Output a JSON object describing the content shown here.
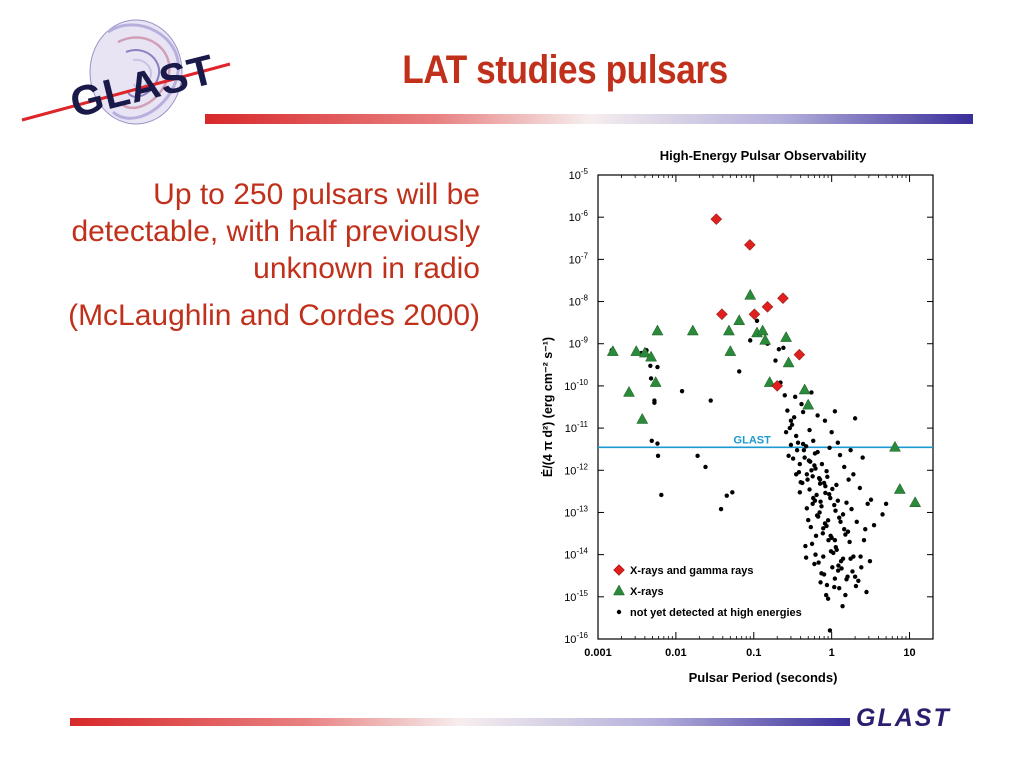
{
  "slide": {
    "title": "LAT studies pulsars",
    "logo_text": "GLAST",
    "bullets": [
      "Up to 250 pulsars will be detectable, with half previously unknown in radio",
      "(McLaughlin and Cordes 2000)"
    ],
    "footer_logo": "GLAST"
  },
  "colors": {
    "title_red": "#c0301a",
    "diamond_red": "#e0201c",
    "triangle_green": "#2a8a3a",
    "glast_line": "#1a9ad0",
    "footer_navy": "#2a1f6e"
  },
  "chart_data": {
    "type": "scatter",
    "title": "High-Energy Pulsar Observability",
    "xlabel": "Pulsar Period  (seconds)",
    "ylabel": "Ė/(4 π d²)  (erg cm⁻² s⁻¹)",
    "x_scale": "log",
    "y_scale": "log",
    "xlim": [
      0.001,
      20
    ],
    "ylim": [
      1e-16,
      1e-05
    ],
    "x_ticks": [
      {
        "value": 0.001,
        "label": "0.001"
      },
      {
        "value": 0.01,
        "label": "0.01"
      },
      {
        "value": 0.1,
        "label": "0.1"
      },
      {
        "value": 1,
        "label": "1"
      },
      {
        "value": 10,
        "label": "10"
      }
    ],
    "y_ticks": [
      {
        "value": 1e-05,
        "base": "10",
        "exp": "-5"
      },
      {
        "value": 1e-06,
        "base": "10",
        "exp": "-6"
      },
      {
        "value": 1e-07,
        "base": "10",
        "exp": "-7"
      },
      {
        "value": 1e-08,
        "base": "10",
        "exp": "-8"
      },
      {
        "value": 1e-09,
        "base": "10",
        "exp": "-9"
      },
      {
        "value": 1e-10,
        "base": "10",
        "exp": "-10"
      },
      {
        "value": 1e-11,
        "base": "10",
        "exp": "-11"
      },
      {
        "value": 1e-12,
        "base": "10",
        "exp": "-12"
      },
      {
        "value": 1e-13,
        "base": "10",
        "exp": "-13"
      },
      {
        "value": 1e-14,
        "base": "10",
        "exp": "-14"
      },
      {
        "value": 1e-15,
        "base": "10",
        "exp": "-15"
      },
      {
        "value": 1e-16,
        "base": "10",
        "exp": "-16"
      }
    ],
    "threshold": {
      "label": "GLAST",
      "y": 3.5e-12,
      "color": "#1a9ad0"
    },
    "grid": false,
    "legend_position": "bottom-left",
    "series": [
      {
        "name": "X-rays and gamma rays",
        "marker": "diamond",
        "color": "#e0201c",
        "points": [
          {
            "x": 0.033,
            "y": 9e-07
          },
          {
            "x": 0.089,
            "y": 2.2e-07
          },
          {
            "x": 0.039,
            "y": 5e-09
          },
          {
            "x": 0.102,
            "y": 5e-09
          },
          {
            "x": 0.15,
            "y": 7.5e-09
          },
          {
            "x": 0.237,
            "y": 1.2e-08
          },
          {
            "x": 0.385,
            "y": 5.5e-10
          },
          {
            "x": 0.2,
            "y": 1e-10
          }
        ]
      },
      {
        "name": "X-rays",
        "marker": "triangle",
        "color": "#2a8a3a",
        "points": [
          {
            "x": 0.00155,
            "y": 6.5e-10
          },
          {
            "x": 0.0031,
            "y": 6.5e-10
          },
          {
            "x": 0.004,
            "y": 6e-10
          },
          {
            "x": 0.0048,
            "y": 4.8e-10
          },
          {
            "x": 0.0058,
            "y": 2e-09
          },
          {
            "x": 0.0055,
            "y": 1.2e-10
          },
          {
            "x": 0.0025,
            "y": 7e-11
          },
          {
            "x": 0.0037,
            "y": 1.6e-11
          },
          {
            "x": 0.0165,
            "y": 2e-09
          },
          {
            "x": 0.048,
            "y": 2e-09
          },
          {
            "x": 0.05,
            "y": 6.5e-10
          },
          {
            "x": 0.065,
            "y": 3.5e-09
          },
          {
            "x": 0.09,
            "y": 1.4e-08
          },
          {
            "x": 0.11,
            "y": 1.8e-09
          },
          {
            "x": 0.13,
            "y": 2e-09
          },
          {
            "x": 0.14,
            "y": 1.2e-09
          },
          {
            "x": 0.16,
            "y": 1.2e-10
          },
          {
            "x": 0.26,
            "y": 1.4e-09
          },
          {
            "x": 0.28,
            "y": 3.5e-10
          },
          {
            "x": 0.45,
            "y": 8e-11
          },
          {
            "x": 0.5,
            "y": 3.5e-11
          },
          {
            "x": 6.5,
            "y": 3.5e-12
          },
          {
            "x": 7.5,
            "y": 3.5e-13
          },
          {
            "x": 11.8,
            "y": 1.7e-13
          }
        ]
      },
      {
        "name": "not yet detected at high energies",
        "marker": "dot",
        "color": "#000000",
        "points": [
          {
            "x": 0.0015,
            "y": 7e-10
          },
          {
            "x": 0.0048,
            "y": 1.5e-10
          },
          {
            "x": 0.0053,
            "y": 4.5e-11
          },
          {
            "x": 0.0049,
            "y": 5e-12
          },
          {
            "x": 0.0053,
            "y": 4e-11
          },
          {
            "x": 0.0058,
            "y": 2.8e-10
          },
          {
            "x": 0.0058,
            "y": 4.3e-12
          },
          {
            "x": 0.0059,
            "y": 2.2e-12
          },
          {
            "x": 0.0065,
            "y": 2.6e-13
          },
          {
            "x": 0.0042,
            "y": 7e-10
          },
          {
            "x": 0.0036,
            "y": 6e-10
          },
          {
            "x": 0.0047,
            "y": 3e-10
          },
          {
            "x": 0.012,
            "y": 7.5e-11
          },
          {
            "x": 0.019,
            "y": 2.2e-12
          },
          {
            "x": 0.024,
            "y": 1.2e-12
          },
          {
            "x": 0.028,
            "y": 4.5e-11
          },
          {
            "x": 0.038,
            "y": 1.2e-13
          },
          {
            "x": 0.045,
            "y": 2.5e-13
          },
          {
            "x": 0.053,
            "y": 3e-13
          },
          {
            "x": 0.065,
            "y": 2.2e-10
          },
          {
            "x": 0.09,
            "y": 1.2e-09
          },
          {
            "x": 0.11,
            "y": 3.5e-09
          },
          {
            "x": 0.15,
            "y": 1e-09
          },
          {
            "x": 0.19,
            "y": 4e-10
          },
          {
            "x": 0.21,
            "y": 7.4e-10
          },
          {
            "x": 0.24,
            "y": 8e-10
          },
          {
            "x": 0.22,
            "y": 1.2e-10
          },
          {
            "x": 0.25,
            "y": 6e-11
          },
          {
            "x": 0.29,
            "y": 1e-11
          },
          {
            "x": 0.34,
            "y": 5.5e-11
          },
          {
            "x": 0.41,
            "y": 3.7e-11
          },
          {
            "x": 0.31,
            "y": 1.2e-11
          },
          {
            "x": 0.26,
            "y": 8e-12
          },
          {
            "x": 0.37,
            "y": 4.5e-12
          },
          {
            "x": 0.44,
            "y": 3e-12
          },
          {
            "x": 0.28,
            "y": 2.2e-12
          },
          {
            "x": 0.53,
            "y": 1.6e-12
          },
          {
            "x": 0.62,
            "y": 1.1e-12
          },
          {
            "x": 0.48,
            "y": 8e-13
          },
          {
            "x": 0.71,
            "y": 6e-13
          },
          {
            "x": 0.83,
            "y": 4.2e-13
          },
          {
            "x": 0.39,
            "y": 3e-13
          },
          {
            "x": 0.96,
            "y": 2.2e-13
          },
          {
            "x": 0.57,
            "y": 1.6e-13
          },
          {
            "x": 1.12,
            "y": 1.1e-13
          },
          {
            "x": 0.67,
            "y": 8e-14
          },
          {
            "x": 1.3,
            "y": 6e-14
          },
          {
            "x": 0.78,
            "y": 4.2e-14
          },
          {
            "x": 1.5,
            "y": 3e-14
          },
          {
            "x": 0.91,
            "y": 2.2e-14
          },
          {
            "x": 0.46,
            "y": 1.6e-14
          },
          {
            "x": 1.05,
            "y": 1.1e-14
          },
          {
            "x": 1.75,
            "y": 8e-15
          },
          {
            "x": 0.6,
            "y": 6e-15
          },
          {
            "x": 1.21,
            "y": 4.2e-15
          },
          {
            "x": 2.0,
            "y": 3e-15
          },
          {
            "x": 0.72,
            "y": 2.2e-15
          },
          {
            "x": 0.85,
            "y": 1.1e-15
          },
          {
            "x": 1.38,
            "y": 6e-16
          },
          {
            "x": 0.95,
            "y": 1.6e-16
          },
          {
            "x": 0.33,
            "y": 1.8e-11
          },
          {
            "x": 0.43,
            "y": 2.4e-11
          },
          {
            "x": 0.52,
            "y": 9e-12
          },
          {
            "x": 0.35,
            "y": 6.5e-12
          },
          {
            "x": 0.58,
            "y": 5e-12
          },
          {
            "x": 0.47,
            "y": 3.7e-12
          },
          {
            "x": 0.66,
            "y": 2.7e-12
          },
          {
            "x": 0.32,
            "y": 1.9e-12
          },
          {
            "x": 0.75,
            "y": 1.4e-12
          },
          {
            "x": 0.55,
            "y": 1e-12
          },
          {
            "x": 0.88,
            "y": 7e-13
          },
          {
            "x": 0.42,
            "y": 5e-13
          },
          {
            "x": 1.02,
            "y": 3.6e-13
          },
          {
            "x": 0.64,
            "y": 2.6e-13
          },
          {
            "x": 1.2,
            "y": 1.9e-13
          },
          {
            "x": 0.74,
            "y": 1.4e-13
          },
          {
            "x": 1.4,
            "y": 9e-14
          },
          {
            "x": 0.5,
            "y": 6.6e-14
          },
          {
            "x": 0.86,
            "y": 4.8e-14
          },
          {
            "x": 1.62,
            "y": 3.5e-14
          },
          {
            "x": 1.0,
            "y": 2.5e-14
          },
          {
            "x": 0.56,
            "y": 1.8e-14
          },
          {
            "x": 1.16,
            "y": 1.3e-14
          },
          {
            "x": 1.9,
            "y": 9e-15
          },
          {
            "x": 0.68,
            "y": 6.5e-15
          },
          {
            "x": 1.34,
            "y": 4.7e-15
          },
          {
            "x": 0.8,
            "y": 3.4e-15
          },
          {
            "x": 2.2,
            "y": 2.4e-15
          },
          {
            "x": 1.08,
            "y": 1.7e-15
          },
          {
            "x": 0.9,
            "y": 9e-16
          },
          {
            "x": 0.36,
            "y": 3e-12
          },
          {
            "x": 0.45,
            "y": 2e-12
          },
          {
            "x": 0.6,
            "y": 1.3e-12
          },
          {
            "x": 0.38,
            "y": 9e-13
          },
          {
            "x": 0.69,
            "y": 6.5e-13
          },
          {
            "x": 0.8,
            "y": 5e-13
          },
          {
            "x": 0.52,
            "y": 3.5e-13
          },
          {
            "x": 0.93,
            "y": 2.7e-13
          },
          {
            "x": 0.61,
            "y": 1.9e-13
          },
          {
            "x": 1.08,
            "y": 1.5e-13
          },
          {
            "x": 0.7,
            "y": 1e-13
          },
          {
            "x": 1.25,
            "y": 7.5e-14
          },
          {
            "x": 0.82,
            "y": 5.5e-14
          },
          {
            "x": 1.45,
            "y": 4e-14
          },
          {
            "x": 0.97,
            "y": 2.8e-14
          },
          {
            "x": 1.7,
            "y": 2e-14
          },
          {
            "x": 1.13,
            "y": 1.5e-14
          },
          {
            "x": 0.62,
            "y": 1e-14
          },
          {
            "x": 1.32,
            "y": 7e-15
          },
          {
            "x": 2.4,
            "y": 5e-15
          },
          {
            "x": 0.74,
            "y": 3.6e-15
          },
          {
            "x": 1.55,
            "y": 2.6e-15
          },
          {
            "x": 0.87,
            "y": 1.9e-15
          },
          {
            "x": 2.8,
            "y": 1.3e-15
          },
          {
            "x": 0.27,
            "y": 2.6e-11
          },
          {
            "x": 0.3,
            "y": 4e-12
          },
          {
            "x": 0.39,
            "y": 1.4e-12
          },
          {
            "x": 0.49,
            "y": 6e-13
          },
          {
            "x": 0.58,
            "y": 2.2e-13
          },
          {
            "x": 0.65,
            "y": 8.5e-14
          },
          {
            "x": 0.77,
            "y": 3.2e-14
          },
          {
            "x": 0.98,
            "y": 1.2e-14
          },
          {
            "x": 1.22,
            "y": 5.5e-15
          },
          {
            "x": 1.6,
            "y": 3e-15
          },
          {
            "x": 0.3,
            "y": 1.5e-11
          },
          {
            "x": 0.51,
            "y": 1.7e-12
          },
          {
            "x": 0.72,
            "y": 1.8e-13
          },
          {
            "x": 0.9,
            "y": 6.5e-14
          },
          {
            "x": 1.1,
            "y": 2.2e-14
          },
          {
            "x": 1.4,
            "y": 8e-15
          },
          {
            "x": 0.43,
            "y": 4.2e-12
          },
          {
            "x": 0.61,
            "y": 2.5e-12
          },
          {
            "x": 0.86,
            "y": 9.5e-13
          },
          {
            "x": 1.15,
            "y": 4.5e-13
          },
          {
            "x": 1.55,
            "y": 1.7e-13
          },
          {
            "x": 2.1,
            "y": 6e-14
          },
          {
            "x": 2.6,
            "y": 2.2e-14
          },
          {
            "x": 3.1,
            "y": 7e-15
          },
          {
            "x": 1.8,
            "y": 1.2e-13
          },
          {
            "x": 2.3,
            "y": 3.8e-13
          },
          {
            "x": 2.9,
            "y": 1.6e-13
          },
          {
            "x": 3.5,
            "y": 5e-14
          },
          {
            "x": 1.9,
            "y": 8e-13
          },
          {
            "x": 2.5,
            "y": 2e-12
          },
          {
            "x": 1.45,
            "y": 1.2e-12
          },
          {
            "x": 1.75,
            "y": 3e-12
          },
          {
            "x": 2.0,
            "y": 1.7e-11
          },
          {
            "x": 1.2,
            "y": 4.5e-12
          },
          {
            "x": 1.0,
            "y": 8e-12
          },
          {
            "x": 0.82,
            "y": 1.5e-11
          },
          {
            "x": 0.66,
            "y": 2e-11
          },
          {
            "x": 0.55,
            "y": 7e-11
          },
          {
            "x": 1.1,
            "y": 2.5e-11
          },
          {
            "x": 0.94,
            "y": 3.4e-12
          },
          {
            "x": 1.28,
            "y": 2.3e-12
          },
          {
            "x": 1.65,
            "y": 6e-13
          },
          {
            "x": 2.7,
            "y": 4e-14
          },
          {
            "x": 4.5,
            "y": 9e-14
          },
          {
            "x": 3.2,
            "y": 2e-13
          },
          {
            "x": 5.0,
            "y": 1.6e-13
          },
          {
            "x": 2.35,
            "y": 9e-15
          },
          {
            "x": 1.85,
            "y": 4e-15
          },
          {
            "x": 2.05,
            "y": 1.8e-15
          },
          {
            "x": 1.1,
            "y": 2.7e-15
          },
          {
            "x": 0.71,
            "y": 4.8e-13
          },
          {
            "x": 0.57,
            "y": 7.2e-13
          },
          {
            "x": 0.83,
            "y": 2.9e-13
          },
          {
            "x": 0.48,
            "y": 1.25e-13
          },
          {
            "x": 0.4,
            "y": 5.2e-13
          },
          {
            "x": 0.35,
            "y": 8e-13
          },
          {
            "x": 0.54,
            "y": 4.5e-14
          },
          {
            "x": 0.63,
            "y": 2.8e-14
          },
          {
            "x": 0.47,
            "y": 8.5e-15
          },
          {
            "x": 0.78,
            "y": 9e-15
          },
          {
            "x": 1.02,
            "y": 5e-15
          },
          {
            "x": 1.5,
            "y": 1.1e-15
          },
          {
            "x": 1.25,
            "y": 1.6e-15
          }
        ]
      }
    ]
  }
}
